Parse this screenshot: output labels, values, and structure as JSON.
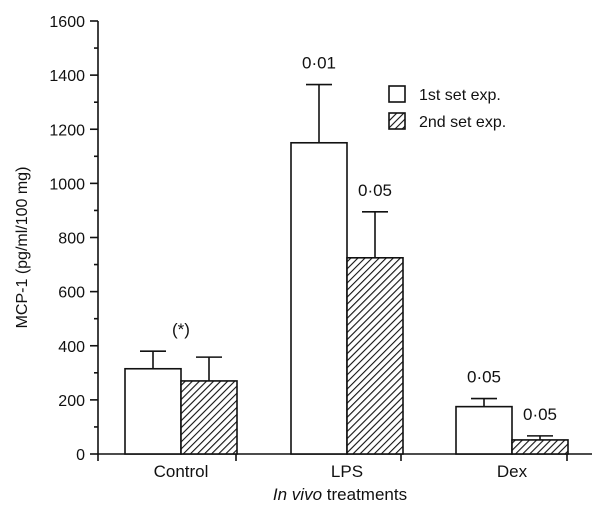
{
  "chart_data": {
    "type": "bar",
    "categories": [
      "Control",
      "LPS",
      "Dex"
    ],
    "series": [
      {
        "name": "1st set exp.",
        "values": [
          315,
          1150,
          175
        ],
        "errors": [
          65,
          215,
          30
        ],
        "style": "open"
      },
      {
        "name": "2nd set exp.",
        "values": [
          270,
          725,
          52
        ],
        "errors": [
          88,
          170,
          15
        ],
        "style": "hatched"
      }
    ],
    "annotations": [
      {
        "category": "Control",
        "series": null,
        "text": "(*)"
      },
      {
        "category": "LPS",
        "series": 0,
        "text": "0·01"
      },
      {
        "category": "LPS",
        "series": 1,
        "text": "0·05"
      },
      {
        "category": "Dex",
        "series": 0,
        "text": "0·05"
      },
      {
        "category": "Dex",
        "series": 1,
        "text": "0·05"
      }
    ],
    "ylabel": "MCP-1 (pg/ml/100 mg)",
    "xlabel_italic": "In vivo",
    "xlabel_rest": " treatments",
    "ylim": [
      0,
      1600
    ],
    "yticks": [
      0,
      200,
      400,
      600,
      800,
      1000,
      1200,
      1400,
      1600
    ],
    "legend_position": "top-right",
    "grid": false
  }
}
